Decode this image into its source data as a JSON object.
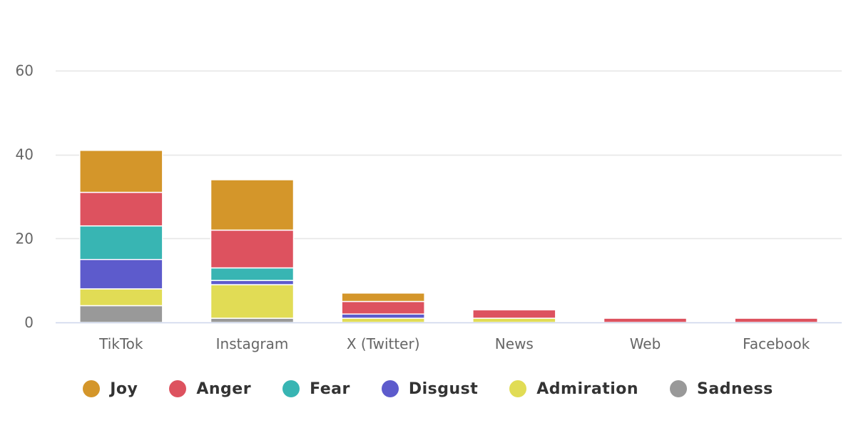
{
  "chart_data": {
    "type": "bar",
    "stacked": true,
    "categories": [
      "TikTok",
      "Instagram",
      "X (Twitter)",
      "News",
      "Web",
      "Facebook"
    ],
    "series": [
      {
        "name": "Sadness",
        "color": "#999999",
        "values": [
          4,
          1,
          0,
          0,
          0,
          0
        ]
      },
      {
        "name": "Admiration",
        "color": "#e1dc55",
        "values": [
          4,
          8,
          1,
          1,
          0,
          0
        ]
      },
      {
        "name": "Disgust",
        "color": "#5d5bcc",
        "values": [
          7,
          1,
          1,
          0,
          0,
          0
        ]
      },
      {
        "name": "Fear",
        "color": "#38b5b3",
        "values": [
          8,
          3,
          0,
          0,
          0,
          0
        ]
      },
      {
        "name": "Anger",
        "color": "#dd525f",
        "values": [
          8,
          9,
          3,
          2,
          1,
          1
        ]
      },
      {
        "name": "Joy",
        "color": "#d4962a",
        "values": [
          10,
          12,
          2,
          0,
          0,
          0
        ]
      }
    ],
    "legend_order": [
      "Joy",
      "Anger",
      "Fear",
      "Disgust",
      "Admiration",
      "Sadness"
    ],
    "ylim": [
      0,
      60
    ],
    "yticks": [
      0,
      20,
      40,
      60
    ],
    "title": "",
    "xlabel": "",
    "ylabel": "",
    "grid": true,
    "legend_position": "bottom"
  }
}
